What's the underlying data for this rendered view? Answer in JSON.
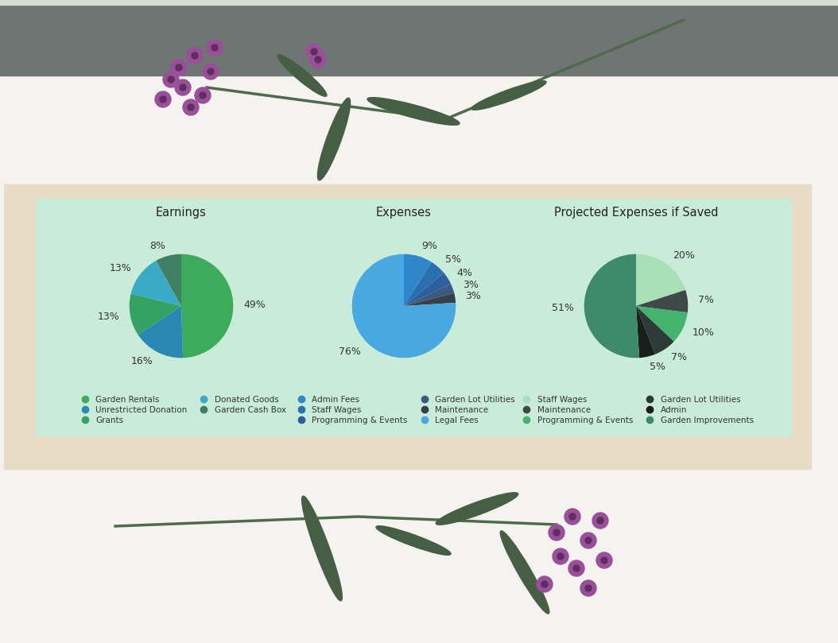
{
  "chart_data": [
    {
      "type": "pie",
      "title": "Earnings",
      "categories": [
        "Garden Rentals",
        "Unrestricted Donation",
        "Grants",
        "Donated Goods",
        "Garden Cash Box"
      ],
      "values": [
        49,
        16,
        13,
        13,
        8
      ],
      "value_labels": [
        "49%",
        "16%",
        "13%",
        "13%",
        "8%"
      ],
      "colors": [
        "#3daa5c",
        "#2b88b5",
        "#34a262",
        "#3aaac6",
        "#3f7f62"
      ],
      "data_labels": true,
      "legend": "lower center"
    },
    {
      "type": "pie",
      "title": "Expenses",
      "categories": [
        "Admin Fees",
        "Staff Wages",
        "Programming & Events",
        "Garden Lot Utilities",
        "Maintenance",
        "Legal Fees"
      ],
      "values": [
        9,
        5,
        4,
        3,
        3,
        76
      ],
      "value_labels": [
        "9%",
        "5%",
        "4%",
        "3%",
        "3%",
        "76%"
      ],
      "colors": [
        "#2f86c8",
        "#2a6fb0",
        "#2d5f9c",
        "#3a5a80",
        "#3b3f4a",
        "#4aa8e0"
      ],
      "data_labels": true,
      "legend": "lower center"
    },
    {
      "type": "pie",
      "title": "Projected Expenses if Saved",
      "categories": [
        "Staff Wages",
        "Maintenance",
        "Programming & Events",
        "Garden Lot Utilities",
        "Admin",
        "Garden Improvements"
      ],
      "values": [
        20,
        7,
        10,
        7,
        5,
        51
      ],
      "value_labels": [
        "20%",
        "7%",
        "10%",
        "7%",
        "5%",
        "51%"
      ],
      "colors": [
        "#a8e0b8",
        "#3f4a48",
        "#44b36e",
        "#2e3a38",
        "#1a1f1e",
        "#3f8a68"
      ],
      "data_labels": true,
      "legend": "lower center"
    }
  ]
}
